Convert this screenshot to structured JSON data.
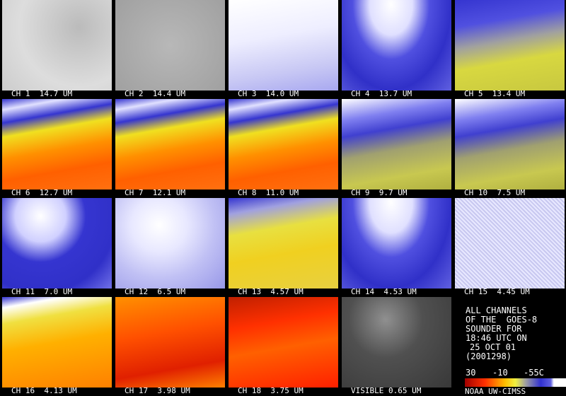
{
  "panels": [
    {
      "label": "CH 1  14.7 UM"
    },
    {
      "label": "CH 2  14.4 UM"
    },
    {
      "label": "CH 3  14.0 UM"
    },
    {
      "label": "CH 4  13.7 UM"
    },
    {
      "label": "CH 5  13.4 UM"
    },
    {
      "label": "CH 6  12.7 UM"
    },
    {
      "label": "CH 7  12.1 UM"
    },
    {
      "label": "CH 8  11.0 UM"
    },
    {
      "label": "CH 9  9.7 UM"
    },
    {
      "label": "CH 10  7.5 UM"
    },
    {
      "label": "CH 11  7.0 UM"
    },
    {
      "label": "CH 12  6.5 UM"
    },
    {
      "label": "CH 13  4.57 UM"
    },
    {
      "label": "CH 14  4.53 UM"
    },
    {
      "label": "CH 15  4.45 UM"
    },
    {
      "label": "CH 16  4.13 UM"
    },
    {
      "label": "CH 17  3.98 UM"
    },
    {
      "label": "CH 18  3.75 UM"
    },
    {
      "label": "VISIBLE 0.65 UM"
    }
  ],
  "info": {
    "lines": [
      "ALL CHANNELS",
      "OF THE  GOES-8",
      "SOUNDER FOR",
      "18:46 UTC ON",
      "25 OCT 01",
      "(2001298)"
    ],
    "colorbar_labels": [
      "30",
      "-10",
      "-55C"
    ],
    "credit": "NOAA UW-CIMSS"
  }
}
